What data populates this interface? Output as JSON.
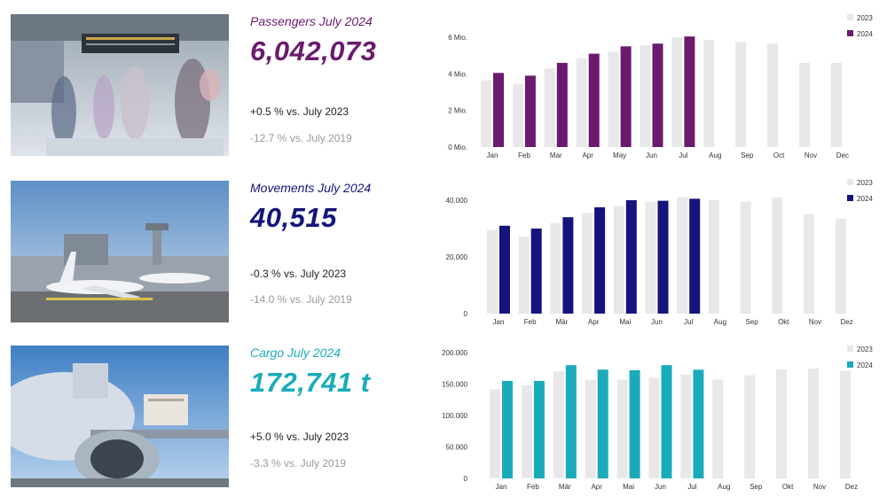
{
  "rows": [
    {
      "title": "Passengers July 2024",
      "value": "6,042,073",
      "vs2023": "+0.5 % vs. July 2023",
      "vs2019": "-12.7 % vs. July 2019",
      "accent": "#6b1a6e",
      "photo_icon": "airport-terminal-passengers-image"
    },
    {
      "title": "Movements July 2024",
      "value": "40,515",
      "vs2023": "-0.3 % vs. July 2023",
      "vs2019": "-14.0 % vs. July 2019",
      "accent": "#14147c",
      "photo_icon": "aircraft-on-apron-image"
    },
    {
      "title": "Cargo July 2024",
      "value": "172,741 t",
      "vs2023": "+5.0 % vs. July 2023",
      "vs2019": "-3.3 % vs. July 2019",
      "accent": "#1aabbb",
      "photo_icon": "cargo-aircraft-loading-image"
    }
  ],
  "chart_data": [
    {
      "type": "bar",
      "categories": [
        "Jan",
        "Feb",
        "Mar",
        "Apr",
        "May",
        "Jun",
        "Jul",
        "Aug",
        "Sep",
        "Oct",
        "Nov",
        "Dec"
      ],
      "series": [
        {
          "name": "2023",
          "values": [
            3.65,
            3.45,
            4.3,
            4.85,
            5.2,
            5.55,
            6.0,
            5.85,
            5.75,
            5.65,
            4.6,
            4.6
          ],
          "color": "#e8e8ea"
        },
        {
          "name": "2024",
          "values": [
            4.05,
            3.9,
            4.6,
            5.1,
            5.5,
            5.65,
            6.04,
            null,
            null,
            null,
            null,
            null
          ],
          "color": "#6b1a6e"
        }
      ],
      "ylim": [
        0,
        6
      ],
      "yticks": [
        0,
        2,
        4,
        6
      ],
      "ytick_labels": [
        "0 Mio.",
        "2 Mio.",
        "4 Mio.",
        "6 Mio."
      ],
      "legend": "top-right",
      "grid": false
    },
    {
      "type": "bar",
      "categories": [
        "Jan",
        "Feb",
        "Mär",
        "Apr",
        "Mai",
        "Jun",
        "Jul",
        "Aug",
        "Sep",
        "Okt",
        "Nov",
        "Dez"
      ],
      "series": [
        {
          "name": "2023",
          "values": [
            29500,
            27200,
            32000,
            35500,
            38000,
            39500,
            41000,
            40000,
            39500,
            41000,
            35000,
            33500
          ],
          "color": "#e8e8ea"
        },
        {
          "name": "2024",
          "values": [
            31000,
            30000,
            34000,
            37500,
            40000,
            39800,
            40515,
            null,
            null,
            null,
            null,
            null
          ],
          "color": "#14147c"
        }
      ],
      "ylim": [
        0,
        40000
      ],
      "yticks": [
        0,
        20000,
        40000
      ],
      "ytick_labels": [
        "0",
        "20.000",
        "40.000"
      ],
      "legend": "top-right",
      "grid": false
    },
    {
      "type": "bar",
      "categories": [
        "Jan",
        "Feb",
        "Mär",
        "Apr",
        "Mai",
        "Jun",
        "Jul",
        "Aug",
        "Sep",
        "Okt",
        "Nov",
        "Dez"
      ],
      "series": [
        {
          "name": "2023",
          "values": [
            142000,
            148000,
            170000,
            156000,
            157000,
            160000,
            165000,
            157000,
            164000,
            173000,
            175000,
            171000
          ],
          "color": "#e8e8ea"
        },
        {
          "name": "2024",
          "values": [
            155000,
            155000,
            180000,
            173000,
            172000,
            180000,
            172741,
            null,
            null,
            null,
            null,
            null
          ],
          "color": "#1aabbb"
        }
      ],
      "ylim": [
        0,
        200000
      ],
      "yticks": [
        0,
        50000,
        100000,
        150000,
        200000
      ],
      "ytick_labels": [
        "0",
        "50.000",
        "100.000",
        "150.000",
        "200.000"
      ],
      "legend": "top-right",
      "grid": false
    }
  ]
}
